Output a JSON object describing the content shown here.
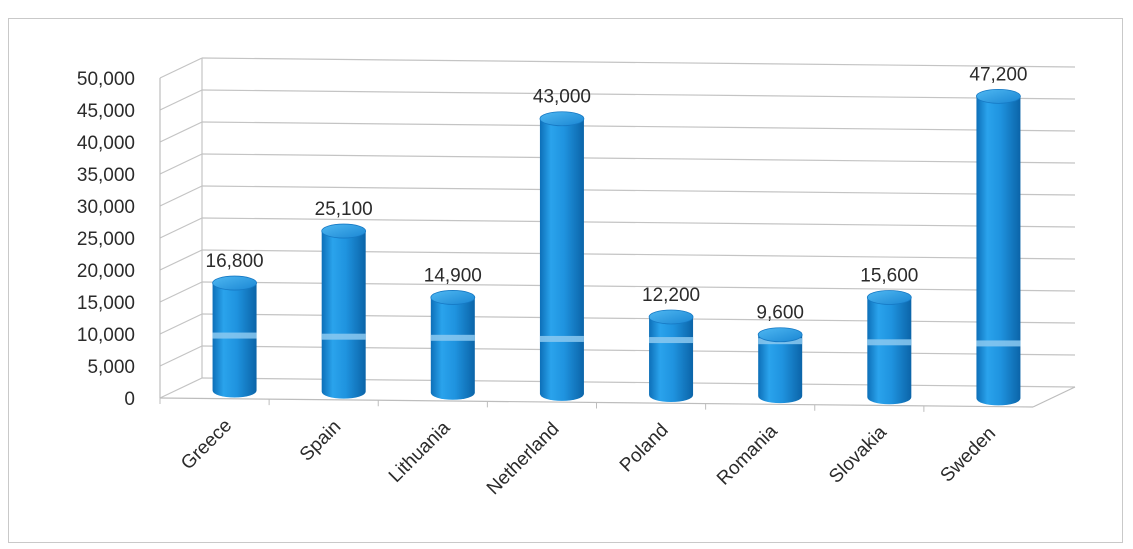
{
  "chart_data": {
    "type": "bar",
    "title": "",
    "xlabel": "",
    "ylabel": "",
    "categories": [
      "Greece",
      "Spain",
      "Lithuania",
      "Netherland",
      "Poland",
      "Romania",
      "Slovakia",
      "Sweden"
    ],
    "values": [
      16800,
      25100,
      14900,
      43000,
      12200,
      9600,
      15600,
      47200
    ],
    "data_labels": [
      "16,800",
      "25,100",
      "14,900",
      "43,000",
      "12,200",
      "9,600",
      "15,600",
      "47,200"
    ],
    "ylim": [
      0,
      50000
    ],
    "yticks": [
      0,
      5000,
      10000,
      15000,
      20000,
      25000,
      30000,
      35000,
      40000,
      45000,
      50000
    ],
    "ytick_labels": [
      "0",
      "5,000",
      "10,000",
      "15,000",
      "20,000",
      "25,000",
      "30,000",
      "35,000",
      "40,000",
      "45,000",
      "50,000"
    ],
    "style": "3d-cylinder",
    "grid": true,
    "legend": "none",
    "bar_color": "#1f93df"
  }
}
